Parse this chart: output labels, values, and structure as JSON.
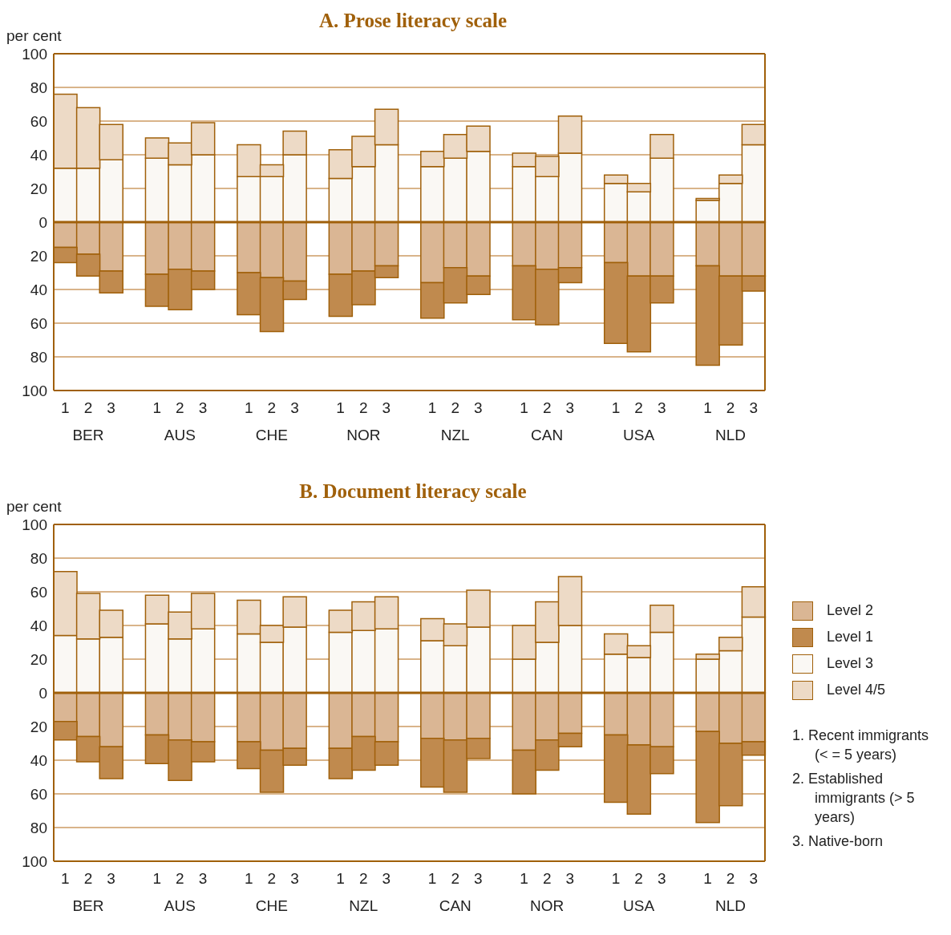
{
  "chart_data": [
    {
      "type": "bar",
      "title": "A. Prose literacy scale",
      "ylabel": "per cent",
      "stacked": true,
      "grid": "y",
      "legend": false,
      "categories": [
        "1",
        "2",
        "3",
        null,
        "1",
        "2",
        "3",
        null,
        "1",
        "2",
        "3",
        null,
        "1",
        "2",
        "3",
        null,
        "1",
        "2",
        "3",
        null,
        "1",
        "2",
        "3",
        null,
        "1",
        "2",
        "3",
        null,
        "1",
        "2",
        "3"
      ],
      "annotations": [
        "BER",
        "AUS",
        "CHE",
        "NOR",
        "NZL",
        "CAN",
        "USA",
        "NLD"
      ],
      "ylim": [
        -100,
        100
      ],
      "yticks": [
        {
          "value": -100,
          "label": "100"
        },
        {
          "value": -80,
          "label": "80"
        },
        {
          "value": -60,
          "label": "60"
        },
        {
          "value": -40,
          "label": "40"
        },
        {
          "value": -20,
          "label": "20"
        },
        0,
        20,
        40,
        60,
        80,
        100
      ],
      "ref_lines": [
        {
          "axis": "y",
          "value": 0,
          "color": "#a0600a"
        }
      ],
      "series": [
        {
          "color": "#dab694",
          "values": [
            -15,
            -19,
            -29,
            null,
            -31,
            -28,
            -29,
            null,
            -30,
            -33,
            -35,
            null,
            -31,
            -29,
            -26,
            null,
            -36,
            -27,
            -32,
            null,
            -26,
            -28,
            -27,
            null,
            -24,
            -32,
            -32,
            null,
            -26,
            -32,
            -32
          ]
        },
        {
          "color": "#c08a4e",
          "values": [
            -9,
            -13,
            -13,
            null,
            -19,
            -24,
            -11,
            null,
            -25,
            -32,
            -11,
            null,
            -25,
            -20,
            -7,
            null,
            -21,
            -21,
            -11,
            null,
            -32,
            -33,
            -9,
            null,
            -48,
            -45,
            -16,
            null,
            -59,
            -41,
            -9
          ]
        },
        {
          "color": "#faf8f4",
          "values": [
            32,
            32,
            37,
            null,
            38,
            34,
            40,
            null,
            27,
            27,
            40,
            null,
            26,
            33,
            46,
            null,
            33,
            38,
            42,
            null,
            33,
            27,
            41,
            null,
            23,
            18,
            38,
            null,
            13,
            23,
            46
          ]
        },
        {
          "color": "#eddac6",
          "values": [
            44,
            36,
            21,
            null,
            12,
            13,
            19,
            null,
            19,
            7,
            14,
            null,
            17,
            18,
            21,
            null,
            9,
            14,
            15,
            null,
            8,
            12,
            22,
            null,
            5,
            5,
            14,
            null,
            1,
            5,
            12
          ]
        }
      ]
    },
    {
      "type": "bar",
      "title": "B. Document literacy scale",
      "ylabel": "per cent",
      "stacked": true,
      "grid": "y",
      "legend": "right",
      "categories": [
        "1",
        "2",
        "3",
        null,
        "1",
        "2",
        "3",
        null,
        "1",
        "2",
        "3",
        null,
        "1",
        "2",
        "3",
        null,
        "1",
        "2",
        "3",
        null,
        "1",
        "2",
        "3",
        null,
        "1",
        "2",
        "3",
        null,
        "1",
        "2",
        "3"
      ],
      "annotations": [
        "BER",
        "AUS",
        "CHE",
        "NZL",
        "CAN",
        "NOR",
        "USA",
        "NLD",
        "1. Recent immigrants (< = 5 years)",
        "2. Established immigrants (> 5 years)",
        "3. Native-born"
      ],
      "ylim": [
        -100,
        100
      ],
      "yticks": [
        {
          "value": -100,
          "label": "100"
        },
        {
          "value": -80,
          "label": "80"
        },
        {
          "value": -60,
          "label": "60"
        },
        {
          "value": -40,
          "label": "40"
        },
        {
          "value": -20,
          "label": "20"
        },
        0,
        20,
        40,
        60,
        80,
        100
      ],
      "ref_lines": [
        {
          "axis": "y",
          "value": 0,
          "color": "#a0600a"
        }
      ],
      "series": [
        {
          "name": "Level 2",
          "color": "#dab694",
          "values": [
            -17,
            -26,
            -32,
            null,
            -25,
            -28,
            -29,
            null,
            -29,
            -34,
            -33,
            null,
            -33,
            -26,
            -29,
            null,
            -27,
            -28,
            -27,
            null,
            -34,
            -28,
            -24,
            null,
            -25,
            -31,
            -32,
            null,
            -23,
            -30,
            -29
          ]
        },
        {
          "name": "Level 1",
          "color": "#c08a4e",
          "values": [
            -11,
            -15,
            -19,
            null,
            -17,
            -24,
            -12,
            null,
            -16,
            -25,
            -10,
            null,
            -18,
            -20,
            -14,
            null,
            -29,
            -31,
            -12,
            null,
            -26,
            -18,
            -8,
            null,
            -40,
            -41,
            -16,
            null,
            -54,
            -37,
            -8
          ]
        },
        {
          "name": "Level 3",
          "color": "#faf8f4",
          "values": [
            34,
            32,
            33,
            null,
            41,
            32,
            38,
            null,
            35,
            30,
            39,
            null,
            36,
            37,
            38,
            null,
            31,
            28,
            39,
            null,
            20,
            30,
            40,
            null,
            23,
            21,
            36,
            null,
            20,
            25,
            45
          ]
        },
        {
          "name": "Level 4/5",
          "color": "#eddac6",
          "values": [
            38,
            27,
            16,
            null,
            17,
            16,
            21,
            null,
            20,
            10,
            18,
            null,
            13,
            17,
            19,
            null,
            13,
            13,
            22,
            null,
            20,
            24,
            29,
            null,
            12,
            7,
            16,
            null,
            3,
            8,
            18
          ]
        }
      ]
    }
  ]
}
